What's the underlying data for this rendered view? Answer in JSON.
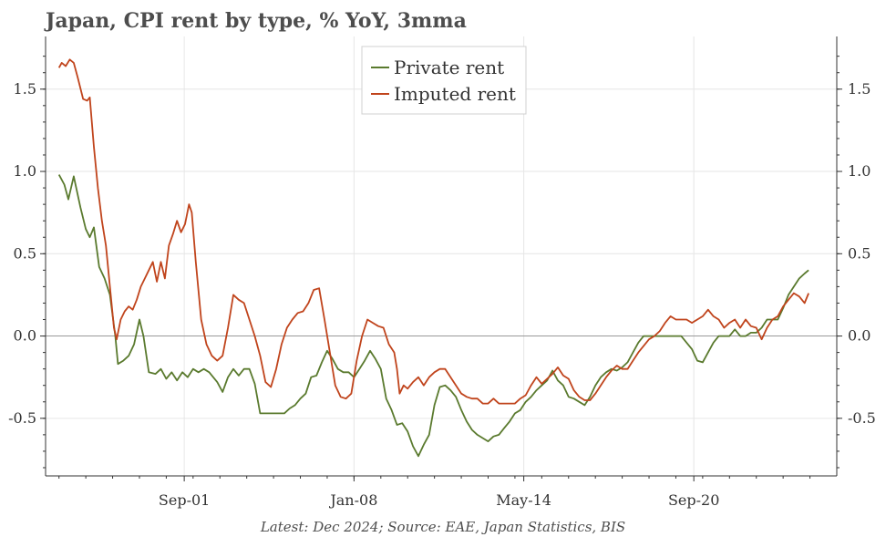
{
  "chart_data": {
    "type": "line",
    "title": "Japan, CPI rent by type, % YoY, 3mma",
    "caption": "Latest: Dec 2024; Source: EAE, Japan Statistics, BIS",
    "xlim": [
      1996.5,
      2026.0
    ],
    "ylim": [
      -0.85,
      1.82
    ],
    "x_ticks": [
      {
        "label": "Sep-01",
        "value": 2001.67
      },
      {
        "label": "Jan-08",
        "value": 2008.0
      },
      {
        "label": "May-14",
        "value": 2014.33
      },
      {
        "label": "Sep-20",
        "value": 2020.67
      }
    ],
    "y_ticks": [
      {
        "label": "-0.5",
        "value": -0.5
      },
      {
        "label": "0.0",
        "value": 0.0
      },
      {
        "label": "0.5",
        "value": 0.5
      },
      {
        "label": "1.0",
        "value": 1.0
      },
      {
        "label": "1.5",
        "value": 1.5
      }
    ],
    "grid": true,
    "legend_position": "top-center",
    "series": [
      {
        "name": "Private rent",
        "color": "#5a7a2e",
        "points": [
          [
            1997.0,
            0.98
          ],
          [
            1997.2,
            0.92
          ],
          [
            1997.35,
            0.83
          ],
          [
            1997.55,
            0.97
          ],
          [
            1997.8,
            0.78
          ],
          [
            1998.0,
            0.65
          ],
          [
            1998.15,
            0.6
          ],
          [
            1998.3,
            0.66
          ],
          [
            1998.5,
            0.42
          ],
          [
            1998.7,
            0.35
          ],
          [
            1998.9,
            0.25
          ],
          [
            1999.1,
            0.0
          ],
          [
            1999.2,
            -0.17
          ],
          [
            1999.4,
            -0.15
          ],
          [
            1999.6,
            -0.12
          ],
          [
            1999.8,
            -0.05
          ],
          [
            2000.0,
            0.1
          ],
          [
            2000.15,
            0.0
          ],
          [
            2000.35,
            -0.22
          ],
          [
            2000.6,
            -0.23
          ],
          [
            2000.8,
            -0.2
          ],
          [
            2001.0,
            -0.26
          ],
          [
            2001.2,
            -0.22
          ],
          [
            2001.4,
            -0.27
          ],
          [
            2001.6,
            -0.22
          ],
          [
            2001.8,
            -0.25
          ],
          [
            2002.0,
            -0.2
          ],
          [
            2002.2,
            -0.22
          ],
          [
            2002.4,
            -0.2
          ],
          [
            2002.6,
            -0.22
          ],
          [
            2002.9,
            -0.28
          ],
          [
            2003.1,
            -0.34
          ],
          [
            2003.3,
            -0.25
          ],
          [
            2003.5,
            -0.2
          ],
          [
            2003.7,
            -0.24
          ],
          [
            2003.9,
            -0.2
          ],
          [
            2004.1,
            -0.2
          ],
          [
            2004.3,
            -0.29
          ],
          [
            2004.5,
            -0.47
          ],
          [
            2004.8,
            -0.47
          ],
          [
            2005.1,
            -0.47
          ],
          [
            2005.4,
            -0.47
          ],
          [
            2005.6,
            -0.44
          ],
          [
            2005.8,
            -0.42
          ],
          [
            2006.0,
            -0.38
          ],
          [
            2006.2,
            -0.35
          ],
          [
            2006.4,
            -0.25
          ],
          [
            2006.6,
            -0.24
          ],
          [
            2006.8,
            -0.16
          ],
          [
            2007.0,
            -0.09
          ],
          [
            2007.2,
            -0.14
          ],
          [
            2007.4,
            -0.2
          ],
          [
            2007.6,
            -0.22
          ],
          [
            2007.8,
            -0.22
          ],
          [
            2008.0,
            -0.25
          ],
          [
            2008.2,
            -0.2
          ],
          [
            2008.4,
            -0.15
          ],
          [
            2008.6,
            -0.09
          ],
          [
            2008.8,
            -0.14
          ],
          [
            2009.0,
            -0.2
          ],
          [
            2009.2,
            -0.38
          ],
          [
            2009.4,
            -0.45
          ],
          [
            2009.6,
            -0.54
          ],
          [
            2009.8,
            -0.53
          ],
          [
            2010.0,
            -0.58
          ],
          [
            2010.2,
            -0.67
          ],
          [
            2010.4,
            -0.73
          ],
          [
            2010.6,
            -0.66
          ],
          [
            2010.8,
            -0.6
          ],
          [
            2011.0,
            -0.42
          ],
          [
            2011.2,
            -0.31
          ],
          [
            2011.4,
            -0.3
          ],
          [
            2011.6,
            -0.33
          ],
          [
            2011.8,
            -0.37
          ],
          [
            2012.0,
            -0.45
          ],
          [
            2012.2,
            -0.52
          ],
          [
            2012.4,
            -0.57
          ],
          [
            2012.6,
            -0.6
          ],
          [
            2012.8,
            -0.62
          ],
          [
            2013.0,
            -0.64
          ],
          [
            2013.2,
            -0.61
          ],
          [
            2013.4,
            -0.6
          ],
          [
            2013.6,
            -0.56
          ],
          [
            2013.8,
            -0.52
          ],
          [
            2014.0,
            -0.47
          ],
          [
            2014.2,
            -0.45
          ],
          [
            2014.4,
            -0.4
          ],
          [
            2014.6,
            -0.37
          ],
          [
            2014.8,
            -0.33
          ],
          [
            2015.0,
            -0.3
          ],
          [
            2015.2,
            -0.27
          ],
          [
            2015.4,
            -0.21
          ],
          [
            2015.6,
            -0.27
          ],
          [
            2015.8,
            -0.3
          ],
          [
            2016.0,
            -0.37
          ],
          [
            2016.2,
            -0.38
          ],
          [
            2016.4,
            -0.4
          ],
          [
            2016.6,
            -0.42
          ],
          [
            2016.8,
            -0.37
          ],
          [
            2017.0,
            -0.3
          ],
          [
            2017.2,
            -0.25
          ],
          [
            2017.4,
            -0.22
          ],
          [
            2017.6,
            -0.2
          ],
          [
            2017.8,
            -0.21
          ],
          [
            2018.0,
            -0.19
          ],
          [
            2018.2,
            -0.16
          ],
          [
            2018.4,
            -0.1
          ],
          [
            2018.6,
            -0.04
          ],
          [
            2018.8,
            0.0
          ],
          [
            2019.0,
            0.0
          ],
          [
            2019.2,
            0.0
          ],
          [
            2019.4,
            0.0
          ],
          [
            2019.6,
            0.0
          ],
          [
            2019.8,
            0.0
          ],
          [
            2020.0,
            0.0
          ],
          [
            2020.2,
            0.0
          ],
          [
            2020.4,
            -0.04
          ],
          [
            2020.6,
            -0.08
          ],
          [
            2020.8,
            -0.15
          ],
          [
            2021.0,
            -0.16
          ],
          [
            2021.2,
            -0.1
          ],
          [
            2021.4,
            -0.04
          ],
          [
            2021.6,
            0.0
          ],
          [
            2021.8,
            0.0
          ],
          [
            2022.0,
            0.0
          ],
          [
            2022.2,
            0.04
          ],
          [
            2022.4,
            0.0
          ],
          [
            2022.6,
            0.0
          ],
          [
            2022.8,
            0.02
          ],
          [
            2023.0,
            0.02
          ],
          [
            2023.2,
            0.05
          ],
          [
            2023.4,
            0.1
          ],
          [
            2023.6,
            0.1
          ],
          [
            2023.8,
            0.1
          ],
          [
            2024.0,
            0.17
          ],
          [
            2024.2,
            0.25
          ],
          [
            2024.4,
            0.3
          ],
          [
            2024.6,
            0.35
          ],
          [
            2024.8,
            0.38
          ],
          [
            2024.95,
            0.4
          ]
        ]
      },
      {
        "name": "Imputed rent",
        "color": "#c0441c",
        "points": [
          [
            1997.0,
            1.63
          ],
          [
            1997.1,
            1.66
          ],
          [
            1997.25,
            1.64
          ],
          [
            1997.4,
            1.68
          ],
          [
            1997.55,
            1.66
          ],
          [
            1997.7,
            1.57
          ],
          [
            1997.9,
            1.44
          ],
          [
            1998.05,
            1.43
          ],
          [
            1998.15,
            1.45
          ],
          [
            1998.3,
            1.15
          ],
          [
            1998.45,
            0.9
          ],
          [
            1998.6,
            0.7
          ],
          [
            1998.75,
            0.55
          ],
          [
            1998.9,
            0.3
          ],
          [
            1999.05,
            0.05
          ],
          [
            1999.15,
            -0.02
          ],
          [
            1999.3,
            0.1
          ],
          [
            1999.45,
            0.15
          ],
          [
            1999.6,
            0.18
          ],
          [
            1999.75,
            0.16
          ],
          [
            1999.9,
            0.22
          ],
          [
            2000.05,
            0.3
          ],
          [
            2000.2,
            0.35
          ],
          [
            2000.35,
            0.4
          ],
          [
            2000.5,
            0.45
          ],
          [
            2000.65,
            0.33
          ],
          [
            2000.8,
            0.45
          ],
          [
            2000.95,
            0.35
          ],
          [
            2001.1,
            0.55
          ],
          [
            2001.25,
            0.62
          ],
          [
            2001.4,
            0.7
          ],
          [
            2001.55,
            0.63
          ],
          [
            2001.7,
            0.68
          ],
          [
            2001.85,
            0.8
          ],
          [
            2001.95,
            0.75
          ],
          [
            2002.1,
            0.45
          ],
          [
            2002.3,
            0.1
          ],
          [
            2002.5,
            -0.05
          ],
          [
            2002.7,
            -0.12
          ],
          [
            2002.9,
            -0.15
          ],
          [
            2003.1,
            -0.12
          ],
          [
            2003.3,
            0.05
          ],
          [
            2003.5,
            0.25
          ],
          [
            2003.7,
            0.22
          ],
          [
            2003.9,
            0.2
          ],
          [
            2004.1,
            0.1
          ],
          [
            2004.3,
            0.0
          ],
          [
            2004.5,
            -0.12
          ],
          [
            2004.7,
            -0.28
          ],
          [
            2004.9,
            -0.31
          ],
          [
            2005.1,
            -0.2
          ],
          [
            2005.3,
            -0.05
          ],
          [
            2005.5,
            0.05
          ],
          [
            2005.7,
            0.1
          ],
          [
            2005.9,
            0.14
          ],
          [
            2006.1,
            0.15
          ],
          [
            2006.3,
            0.2
          ],
          [
            2006.5,
            0.28
          ],
          [
            2006.7,
            0.29
          ],
          [
            2006.9,
            0.1
          ],
          [
            2007.1,
            -0.1
          ],
          [
            2007.3,
            -0.3
          ],
          [
            2007.5,
            -0.37
          ],
          [
            2007.7,
            -0.38
          ],
          [
            2007.9,
            -0.35
          ],
          [
            2008.1,
            -0.15
          ],
          [
            2008.3,
            0.0
          ],
          [
            2008.5,
            0.1
          ],
          [
            2008.7,
            0.08
          ],
          [
            2008.9,
            0.06
          ],
          [
            2009.1,
            0.05
          ],
          [
            2009.3,
            -0.05
          ],
          [
            2009.5,
            -0.1
          ],
          [
            2009.6,
            -0.2
          ],
          [
            2009.7,
            -0.35
          ],
          [
            2009.85,
            -0.3
          ],
          [
            2010.0,
            -0.32
          ],
          [
            2010.2,
            -0.28
          ],
          [
            2010.4,
            -0.25
          ],
          [
            2010.6,
            -0.3
          ],
          [
            2010.8,
            -0.25
          ],
          [
            2011.0,
            -0.22
          ],
          [
            2011.2,
            -0.2
          ],
          [
            2011.4,
            -0.2
          ],
          [
            2011.6,
            -0.25
          ],
          [
            2011.8,
            -0.3
          ],
          [
            2012.0,
            -0.35
          ],
          [
            2012.2,
            -0.37
          ],
          [
            2012.4,
            -0.38
          ],
          [
            2012.6,
            -0.38
          ],
          [
            2012.8,
            -0.41
          ],
          [
            2013.0,
            -0.41
          ],
          [
            2013.2,
            -0.38
          ],
          [
            2013.4,
            -0.41
          ],
          [
            2013.6,
            -0.41
          ],
          [
            2013.8,
            -0.41
          ],
          [
            2014.0,
            -0.41
          ],
          [
            2014.2,
            -0.38
          ],
          [
            2014.4,
            -0.36
          ],
          [
            2014.6,
            -0.3
          ],
          [
            2014.8,
            -0.25
          ],
          [
            2015.0,
            -0.29
          ],
          [
            2015.2,
            -0.26
          ],
          [
            2015.4,
            -0.23
          ],
          [
            2015.6,
            -0.19
          ],
          [
            2015.8,
            -0.24
          ],
          [
            2016.0,
            -0.26
          ],
          [
            2016.2,
            -0.33
          ],
          [
            2016.4,
            -0.37
          ],
          [
            2016.6,
            -0.39
          ],
          [
            2016.8,
            -0.39
          ],
          [
            2017.0,
            -0.35
          ],
          [
            2017.2,
            -0.3
          ],
          [
            2017.4,
            -0.25
          ],
          [
            2017.6,
            -0.21
          ],
          [
            2017.8,
            -0.18
          ],
          [
            2018.0,
            -0.2
          ],
          [
            2018.2,
            -0.2
          ],
          [
            2018.4,
            -0.15
          ],
          [
            2018.6,
            -0.1
          ],
          [
            2018.8,
            -0.06
          ],
          [
            2019.0,
            -0.02
          ],
          [
            2019.2,
            0.0
          ],
          [
            2019.4,
            0.03
          ],
          [
            2019.6,
            0.08
          ],
          [
            2019.8,
            0.12
          ],
          [
            2020.0,
            0.1
          ],
          [
            2020.2,
            0.1
          ],
          [
            2020.4,
            0.1
          ],
          [
            2020.6,
            0.08
          ],
          [
            2020.8,
            0.1
          ],
          [
            2021.0,
            0.12
          ],
          [
            2021.2,
            0.16
          ],
          [
            2021.4,
            0.12
          ],
          [
            2021.6,
            0.1
          ],
          [
            2021.8,
            0.05
          ],
          [
            2022.0,
            0.08
          ],
          [
            2022.2,
            0.1
          ],
          [
            2022.4,
            0.05
          ],
          [
            2022.6,
            0.1
          ],
          [
            2022.8,
            0.06
          ],
          [
            2023.0,
            0.05
          ],
          [
            2023.2,
            -0.02
          ],
          [
            2023.4,
            0.05
          ],
          [
            2023.6,
            0.1
          ],
          [
            2023.8,
            0.12
          ],
          [
            2024.0,
            0.18
          ],
          [
            2024.2,
            0.22
          ],
          [
            2024.4,
            0.26
          ],
          [
            2024.6,
            0.24
          ],
          [
            2024.8,
            0.2
          ],
          [
            2024.95,
            0.26
          ]
        ]
      }
    ]
  }
}
